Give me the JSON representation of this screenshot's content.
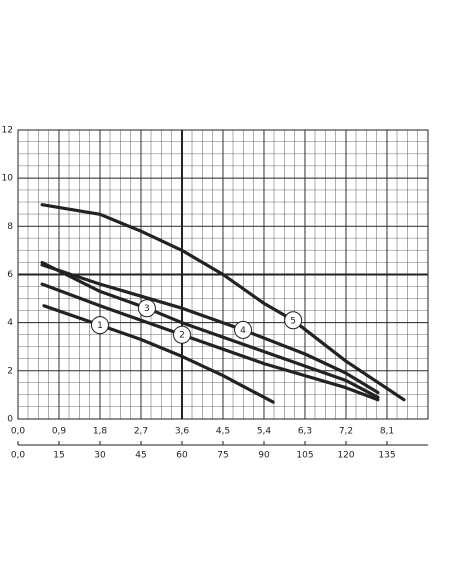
{
  "chart_data": {
    "type": "line",
    "xlim": [
      0,
      9
    ],
    "ylim": [
      0,
      12
    ],
    "x2lim": [
      0,
      150
    ],
    "xticks": [
      {
        "value": 0,
        "label": "0,0"
      },
      {
        "value": 0.9,
        "label": "0,9"
      },
      {
        "value": 1.8,
        "label": "1,8"
      },
      {
        "value": 2.7,
        "label": "2,7"
      },
      {
        "value": 3.6,
        "label": "3,6"
      },
      {
        "value": 4.5,
        "label": "4,5"
      },
      {
        "value": 5.4,
        "label": "5,4"
      },
      {
        "value": 6.3,
        "label": "6,3"
      },
      {
        "value": 7.2,
        "label": "7,2"
      },
      {
        "value": 8.1,
        "label": "8,1"
      }
    ],
    "yticks": [
      0,
      2,
      4,
      6,
      8,
      10,
      12
    ],
    "x2ticks": [
      {
        "value": 0,
        "label": "0,0"
      },
      15,
      30,
      45,
      60,
      75,
      90,
      105,
      120,
      135
    ],
    "grid": true,
    "color": "#222222",
    "series": [
      {
        "name": "1",
        "x": [
          0.57,
          1.8,
          2.7,
          3.6,
          4.5,
          5.6
        ],
        "values": [
          4.7,
          3.9,
          3.3,
          2.6,
          1.8,
          0.7
        ]
      },
      {
        "name": "2",
        "x": [
          0.53,
          1.8,
          3.6,
          5.4,
          7.2,
          7.9
        ],
        "values": [
          5.6,
          4.7,
          3.5,
          2.3,
          1.3,
          0.8
        ]
      },
      {
        "name": "3",
        "x": [
          0.53,
          1.8,
          2.83,
          3.6,
          5.4,
          7.2,
          7.9
        ],
        "values": [
          6.5,
          5.3,
          4.6,
          4.0,
          2.8,
          1.6,
          0.9
        ]
      },
      {
        "name": "4",
        "x": [
          0.53,
          1.8,
          3.6,
          4.94,
          6.3,
          7.2,
          7.9
        ],
        "values": [
          6.4,
          5.6,
          4.6,
          3.7,
          2.7,
          1.9,
          1.1
        ]
      },
      {
        "name": "5",
        "x": [
          0.53,
          1.8,
          2.7,
          3.6,
          4.5,
          5.4,
          6.04,
          7.2,
          8.47
        ],
        "values": [
          8.9,
          8.5,
          7.8,
          7.0,
          6.0,
          4.8,
          4.1,
          2.4,
          0.8
        ]
      }
    ]
  }
}
